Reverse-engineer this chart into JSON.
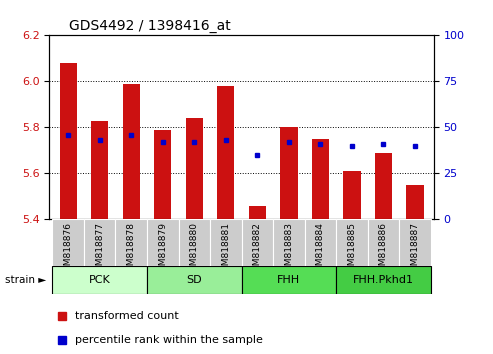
{
  "title": "GDS4492 / 1398416_at",
  "samples": [
    "GSM818876",
    "GSM818877",
    "GSM818878",
    "GSM818879",
    "GSM818880",
    "GSM818881",
    "GSM818882",
    "GSM818883",
    "GSM818884",
    "GSM818885",
    "GSM818886",
    "GSM818887"
  ],
  "red_values": [
    6.08,
    5.83,
    5.99,
    5.79,
    5.84,
    5.98,
    5.46,
    5.8,
    5.75,
    5.61,
    5.69,
    5.55
  ],
  "blue_percentiles": [
    46,
    43,
    46,
    42,
    42,
    43,
    35,
    42,
    41,
    40,
    41,
    40
  ],
  "base": 5.4,
  "ylim": [
    5.4,
    6.2
  ],
  "yticks_left": [
    5.4,
    5.6,
    5.8,
    6.0,
    6.2
  ],
  "yticks_right": [
    0,
    25,
    50,
    75,
    100
  ],
  "grid_values": [
    5.6,
    5.8,
    6.0
  ],
  "groups": [
    {
      "label": "PCK",
      "start": 0,
      "end": 2,
      "color": "#ccffcc"
    },
    {
      "label": "SD",
      "start": 3,
      "end": 5,
      "color": "#99ee99"
    },
    {
      "label": "FHH",
      "start": 6,
      "end": 8,
      "color": "#55dd55"
    },
    {
      "label": "FHH.Pkhd1",
      "start": 9,
      "end": 11,
      "color": "#44cc44"
    }
  ],
  "bar_color": "#cc1111",
  "dot_color": "#0000cc",
  "bar_width": 0.55,
  "tick_color_left": "#cc1111",
  "tick_color_right": "#0000cc",
  "legend_red": "transformed count",
  "legend_blue": "percentile rank within the sample",
  "background_tick": "#cccccc"
}
